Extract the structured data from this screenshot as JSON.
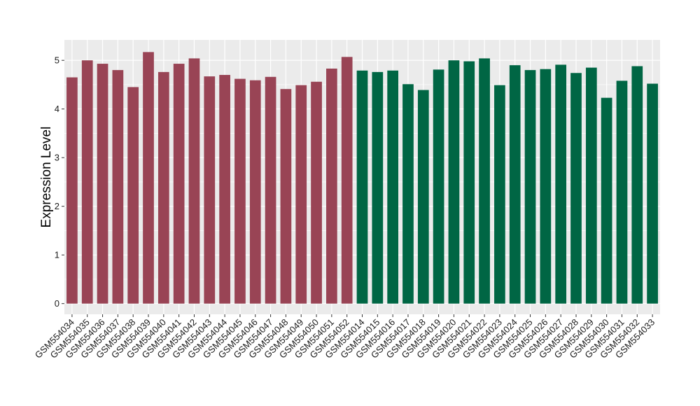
{
  "chart_data": {
    "type": "bar",
    "title": "",
    "xlabel": "",
    "ylabel": "Expression Level",
    "ylim": [
      -0.22,
      5.42
    ],
    "yticks": [
      0,
      1,
      2,
      3,
      4,
      5
    ],
    "grid": true,
    "legend": "none",
    "panel_background": "#ebebeb",
    "grid_color": "#ffffff",
    "categories": [
      "GSM554034",
      "GSM554035",
      "GSM554036",
      "GSM554037",
      "GSM554038",
      "GSM554039",
      "GSM554040",
      "GSM554041",
      "GSM554042",
      "GSM554043",
      "GSM554044",
      "GSM554045",
      "GSM554046",
      "GSM554047",
      "GSM554048",
      "GSM554049",
      "GSM554050",
      "GSM554051",
      "GSM554052",
      "GSM554014",
      "GSM554015",
      "GSM554016",
      "GSM554017",
      "GSM554018",
      "GSM554019",
      "GSM554020",
      "GSM554021",
      "GSM554022",
      "GSM554023",
      "GSM554024",
      "GSM554025",
      "GSM554026",
      "GSM554027",
      "GSM554028",
      "GSM554029",
      "GSM554030",
      "GSM554031",
      "GSM554032",
      "GSM554033"
    ],
    "values": [
      4.65,
      5.0,
      4.93,
      4.8,
      4.45,
      5.17,
      4.76,
      4.93,
      5.04,
      4.67,
      4.7,
      4.62,
      4.59,
      4.66,
      4.41,
      4.49,
      4.56,
      4.83,
      5.07,
      4.79,
      4.76,
      4.79,
      4.51,
      4.39,
      4.81,
      5.0,
      4.98,
      5.04,
      4.49,
      4.9,
      4.8,
      4.82,
      4.91,
      4.74,
      4.85,
      4.23,
      4.58,
      4.88,
      4.52
    ],
    "bar_colors": [
      "#994455",
      "#994455",
      "#994455",
      "#994455",
      "#994455",
      "#994455",
      "#994455",
      "#994455",
      "#994455",
      "#994455",
      "#994455",
      "#994455",
      "#994455",
      "#994455",
      "#994455",
      "#994455",
      "#994455",
      "#994455",
      "#994455",
      "#006644",
      "#006644",
      "#006644",
      "#006644",
      "#006644",
      "#006644",
      "#006644",
      "#006644",
      "#006644",
      "#006644",
      "#006644",
      "#006644",
      "#006644",
      "#006644",
      "#006644",
      "#006644",
      "#006644",
      "#006644",
      "#006644",
      "#006644"
    ]
  }
}
